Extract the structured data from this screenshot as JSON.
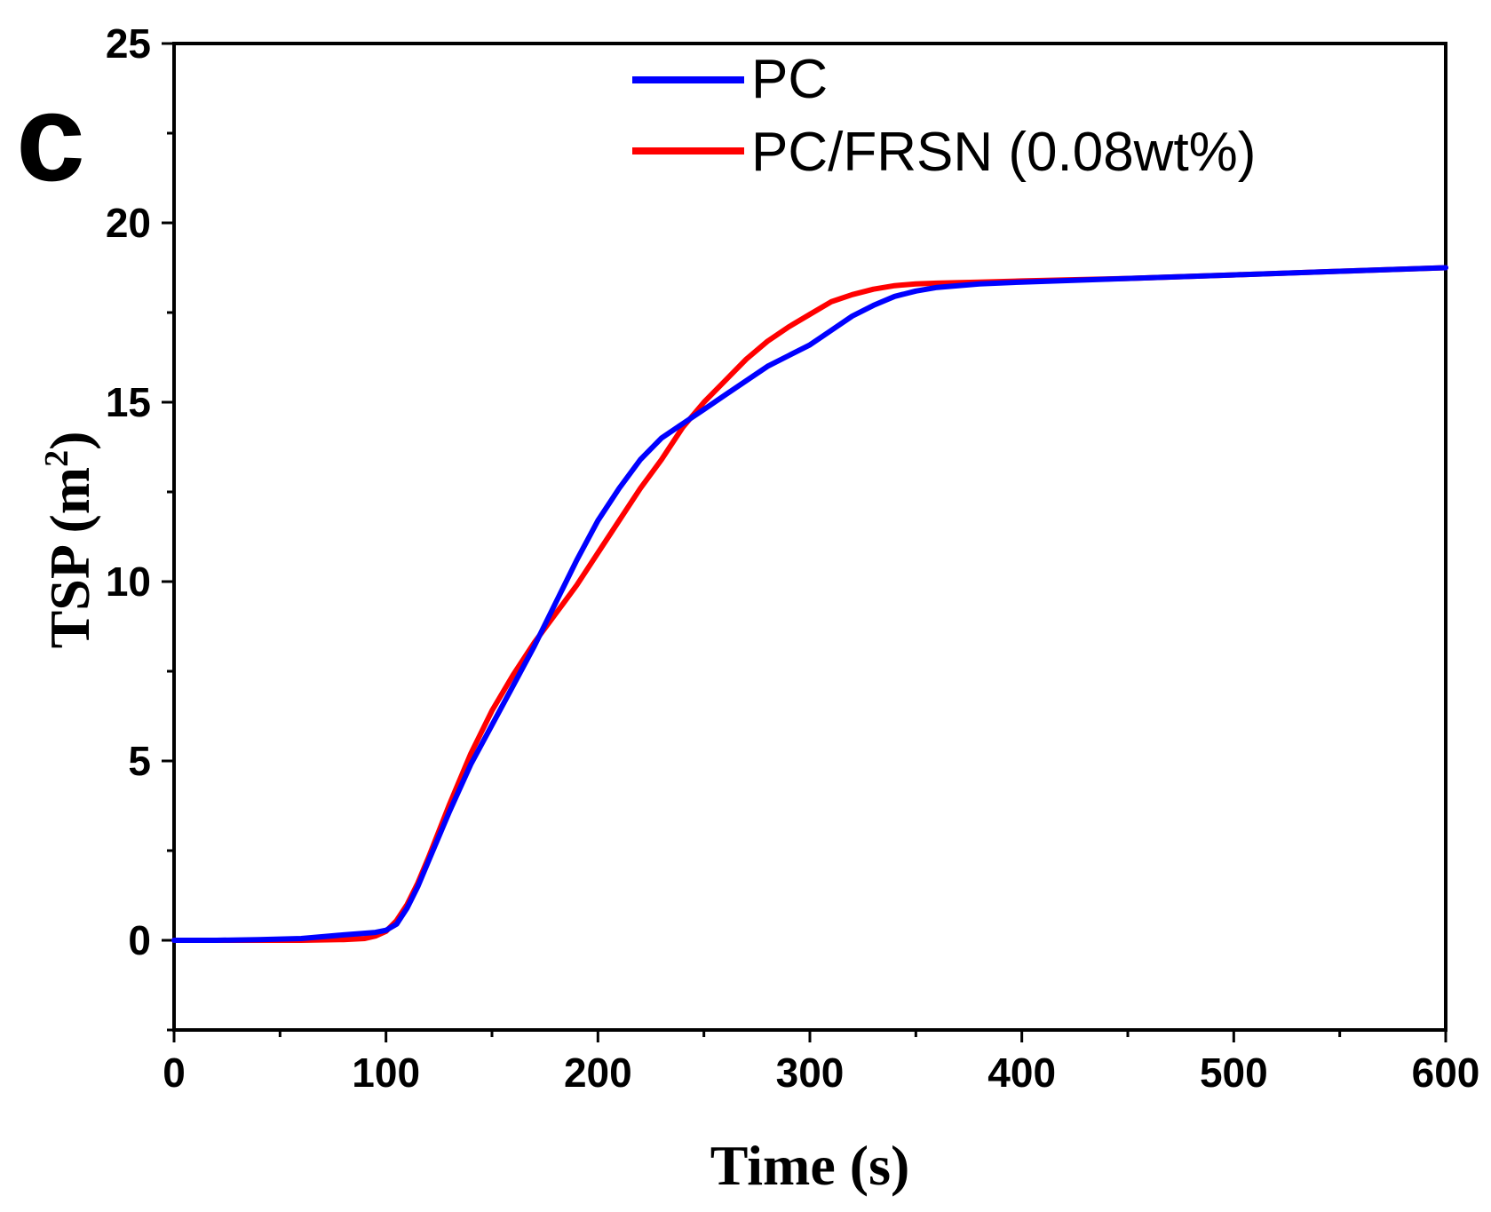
{
  "chart_data": {
    "type": "line",
    "panel_label": "c",
    "title": "",
    "xlabel": "Time (s)",
    "ylabel_main": "TSP (m",
    "ylabel_sup": "2",
    "ylabel_close": ")",
    "xlim": [
      0,
      600
    ],
    "ylim": [
      -2.5,
      25
    ],
    "x_ticks": [
      0,
      100,
      200,
      300,
      400,
      500,
      600
    ],
    "y_ticks": [
      0,
      5,
      10,
      15,
      20,
      25
    ],
    "x_minor_step": 50,
    "y_minor_step": 2.5,
    "grid": false,
    "legend_position": "top-center",
    "series": [
      {
        "name": "PC",
        "color": "#0000ff",
        "x": [
          0,
          20,
          40,
          60,
          80,
          95,
          100,
          105,
          110,
          115,
          120,
          130,
          140,
          150,
          160,
          170,
          180,
          190,
          200,
          210,
          220,
          230,
          240,
          250,
          260,
          270,
          280,
          290,
          300,
          310,
          320,
          330,
          340,
          350,
          360,
          380,
          400,
          450,
          500,
          550,
          600
        ],
        "y": [
          0,
          0,
          0.02,
          0.05,
          0.15,
          0.22,
          0.28,
          0.45,
          0.9,
          1.5,
          2.2,
          3.6,
          4.9,
          6.0,
          7.1,
          8.2,
          9.4,
          10.6,
          11.7,
          12.6,
          13.4,
          14.0,
          14.4,
          14.8,
          15.2,
          15.6,
          16.0,
          16.3,
          16.6,
          17.0,
          17.4,
          17.7,
          17.95,
          18.1,
          18.2,
          18.3,
          18.35,
          18.45,
          18.55,
          18.65,
          18.75
        ]
      },
      {
        "name": "PC/FRSN (0.08wt%)",
        "color": "#ff0000",
        "x": [
          0,
          20,
          40,
          60,
          80,
          90,
          95,
          100,
          105,
          110,
          115,
          120,
          130,
          140,
          150,
          160,
          170,
          180,
          190,
          200,
          210,
          220,
          230,
          240,
          250,
          260,
          270,
          280,
          290,
          300,
          310,
          320,
          330,
          340,
          350,
          360,
          380,
          400,
          450,
          500,
          550,
          600
        ],
        "y": [
          0,
          0,
          0,
          0,
          0.02,
          0.05,
          0.12,
          0.25,
          0.55,
          1.0,
          1.6,
          2.3,
          3.8,
          5.2,
          6.4,
          7.4,
          8.3,
          9.1,
          9.9,
          10.8,
          11.7,
          12.6,
          13.4,
          14.3,
          15.0,
          15.6,
          16.2,
          16.7,
          17.1,
          17.45,
          17.8,
          18.0,
          18.15,
          18.25,
          18.3,
          18.32,
          18.35,
          18.38,
          18.45,
          18.55,
          18.65,
          18.75
        ]
      }
    ]
  }
}
